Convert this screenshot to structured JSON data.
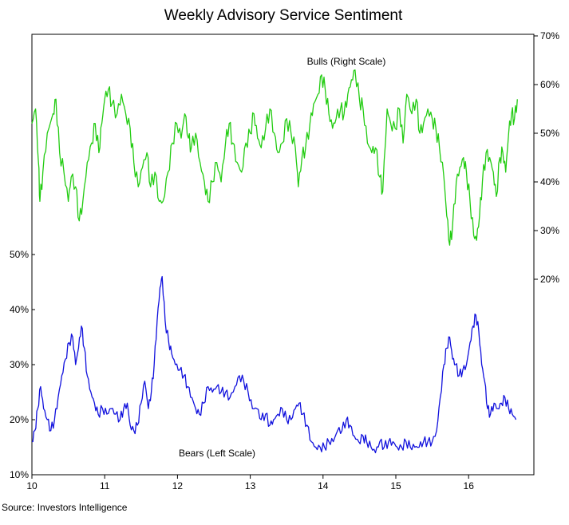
{
  "chart_data": {
    "type": "line",
    "title": "Weekly Advisory Service Sentiment",
    "source": "Source:  Investors  Intelligence",
    "x_ticks": [
      "10",
      "11",
      "12",
      "13",
      "14",
      "15",
      "16"
    ],
    "x_range": [
      2010.0,
      2016.95
    ],
    "left_axis": {
      "ticks": [
        "10%",
        "20%",
        "30%",
        "40%",
        "50%"
      ],
      "range": [
        10,
        50
      ]
    },
    "right_axis": {
      "ticks": [
        "20%",
        "30%",
        "40%",
        "50%",
        "60%",
        "70%"
      ],
      "range": [
        20,
        70
      ]
    },
    "legend": "none (series labelled inline)",
    "grid": false,
    "series": [
      {
        "name": "Bulls (Right Scale)",
        "axis": "right",
        "color": "#22cc11",
        "points": [
          [
            2010.0,
            52
          ],
          [
            2010.05,
            55
          ],
          [
            2010.09,
            44
          ],
          [
            2010.11,
            36
          ],
          [
            2010.15,
            42
          ],
          [
            2010.21,
            50
          ],
          [
            2010.29,
            54
          ],
          [
            2010.33,
            57
          ],
          [
            2010.38,
            46
          ],
          [
            2010.44,
            42
          ],
          [
            2010.5,
            36
          ],
          [
            2010.54,
            41
          ],
          [
            2010.6,
            39
          ],
          [
            2010.65,
            32
          ],
          [
            2010.7,
            36
          ],
          [
            2010.76,
            44
          ],
          [
            2010.82,
            48
          ],
          [
            2010.87,
            52
          ],
          [
            2010.92,
            46
          ],
          [
            2010.96,
            52
          ],
          [
            2011.0,
            57
          ],
          [
            2011.05,
            59
          ],
          [
            2011.1,
            56
          ],
          [
            2011.17,
            54
          ],
          [
            2011.23,
            58
          ],
          [
            2011.29,
            54
          ],
          [
            2011.35,
            51
          ],
          [
            2011.4,
            44
          ],
          [
            2011.46,
            39
          ],
          [
            2011.52,
            43
          ],
          [
            2011.58,
            46
          ],
          [
            2011.63,
            39
          ],
          [
            2011.69,
            42
          ],
          [
            2011.75,
            36
          ],
          [
            2011.8,
            36
          ],
          [
            2011.87,
            42
          ],
          [
            2011.93,
            48
          ],
          [
            2011.99,
            52
          ],
          [
            2012.05,
            49
          ],
          [
            2012.1,
            54
          ],
          [
            2012.15,
            49
          ],
          [
            2012.19,
            47
          ],
          [
            2012.25,
            50
          ],
          [
            2012.31,
            44
          ],
          [
            2012.37,
            40
          ],
          [
            2012.42,
            36
          ],
          [
            2012.48,
            40
          ],
          [
            2012.54,
            44
          ],
          [
            2012.6,
            40
          ],
          [
            2012.66,
            48
          ],
          [
            2012.71,
            52
          ],
          [
            2012.76,
            48
          ],
          [
            2012.82,
            44
          ],
          [
            2012.88,
            42
          ],
          [
            2012.94,
            48
          ],
          [
            2013.0,
            50
          ],
          [
            2013.05,
            54
          ],
          [
            2013.1,
            49
          ],
          [
            2013.15,
            47
          ],
          [
            2013.21,
            51
          ],
          [
            2013.27,
            55
          ],
          [
            2013.33,
            50
          ],
          [
            2013.38,
            46
          ],
          [
            2013.44,
            48
          ],
          [
            2013.5,
            53
          ],
          [
            2013.56,
            50
          ],
          [
            2013.62,
            47
          ],
          [
            2013.66,
            39
          ],
          [
            2013.71,
            45
          ],
          [
            2013.76,
            47
          ],
          [
            2013.82,
            52
          ],
          [
            2013.87,
            56
          ],
          [
            2013.93,
            58
          ],
          [
            2013.98,
            62
          ],
          [
            2014.03,
            59
          ],
          [
            2014.08,
            54
          ],
          [
            2014.13,
            51
          ],
          [
            2014.18,
            53
          ],
          [
            2014.24,
            55
          ],
          [
            2014.29,
            54
          ],
          [
            2014.34,
            58
          ],
          [
            2014.39,
            61
          ],
          [
            2014.44,
            63
          ],
          [
            2014.5,
            57
          ],
          [
            2014.55,
            55
          ],
          [
            2014.61,
            48
          ],
          [
            2014.67,
            46
          ],
          [
            2014.72,
            47
          ],
          [
            2014.78,
            41
          ],
          [
            2014.82,
            38
          ],
          [
            2014.88,
            55
          ],
          [
            2014.93,
            52
          ],
          [
            2014.99,
            51
          ],
          [
            2015.05,
            55
          ],
          [
            2015.1,
            48
          ],
          [
            2015.15,
            58
          ],
          [
            2015.22,
            54
          ],
          [
            2015.28,
            57
          ],
          [
            2015.33,
            50
          ],
          [
            2015.38,
            52
          ],
          [
            2015.44,
            55
          ],
          [
            2015.5,
            53
          ],
          [
            2015.55,
            51
          ],
          [
            2015.6,
            47
          ],
          [
            2015.66,
            41
          ],
          [
            2015.7,
            33
          ],
          [
            2015.74,
            27
          ],
          [
            2015.78,
            31
          ],
          [
            2015.83,
            40
          ],
          [
            2015.88,
            43
          ],
          [
            2015.93,
            45
          ],
          [
            2015.97,
            42
          ],
          [
            2016.02,
            36
          ],
          [
            2016.07,
            29
          ],
          [
            2016.11,
            28
          ],
          [
            2016.15,
            33
          ],
          [
            2016.19,
            40
          ],
          [
            2016.24,
            46
          ],
          [
            2016.29,
            45
          ],
          [
            2016.34,
            42
          ],
          [
            2016.38,
            37
          ],
          [
            2016.43,
            45
          ],
          [
            2016.47,
            46
          ],
          [
            2016.51,
            42
          ],
          [
            2016.55,
            50
          ],
          [
            2016.59,
            54
          ],
          [
            2016.63,
            53
          ],
          [
            2016.67,
            57
          ]
        ]
      },
      {
        "name": "Bears (Left Scale)",
        "axis": "left",
        "color": "#1111dd",
        "points": [
          [
            2010.0,
            16
          ],
          [
            2010.04,
            18
          ],
          [
            2010.08,
            22
          ],
          [
            2010.12,
            26
          ],
          [
            2010.16,
            22
          ],
          [
            2010.21,
            20
          ],
          [
            2010.26,
            18
          ],
          [
            2010.31,
            20
          ],
          [
            2010.36,
            24
          ],
          [
            2010.41,
            28
          ],
          [
            2010.46,
            31
          ],
          [
            2010.51,
            34
          ],
          [
            2010.56,
            35
          ],
          [
            2010.6,
            30
          ],
          [
            2010.64,
            33
          ],
          [
            2010.68,
            37
          ],
          [
            2010.72,
            33
          ],
          [
            2010.76,
            28
          ],
          [
            2010.81,
            25
          ],
          [
            2010.86,
            23
          ],
          [
            2010.91,
            21
          ],
          [
            2010.97,
            22
          ],
          [
            2011.03,
            21
          ],
          [
            2011.09,
            22
          ],
          [
            2011.15,
            21
          ],
          [
            2011.21,
            20
          ],
          [
            2011.26,
            22
          ],
          [
            2011.31,
            23
          ],
          [
            2011.35,
            19
          ],
          [
            2011.4,
            18
          ],
          [
            2011.45,
            19
          ],
          [
            2011.5,
            23
          ],
          [
            2011.55,
            27
          ],
          [
            2011.6,
            22
          ],
          [
            2011.64,
            25
          ],
          [
            2011.68,
            30
          ],
          [
            2011.72,
            38
          ],
          [
            2011.76,
            44
          ],
          [
            2011.79,
            46
          ],
          [
            2011.83,
            38
          ],
          [
            2011.88,
            34
          ],
          [
            2011.92,
            32
          ],
          [
            2011.97,
            30
          ],
          [
            2012.03,
            29
          ],
          [
            2012.09,
            28
          ],
          [
            2012.14,
            26
          ],
          [
            2012.2,
            24
          ],
          [
            2012.25,
            22
          ],
          [
            2012.3,
            21
          ],
          [
            2012.36,
            23
          ],
          [
            2012.42,
            26
          ],
          [
            2012.48,
            25
          ],
          [
            2012.54,
            26
          ],
          [
            2012.6,
            25
          ],
          [
            2012.66,
            25
          ],
          [
            2012.72,
            24
          ],
          [
            2012.79,
            26
          ],
          [
            2012.85,
            28
          ],
          [
            2012.91,
            27
          ],
          [
            2012.97,
            25
          ],
          [
            2013.03,
            22
          ],
          [
            2013.09,
            22
          ],
          [
            2013.15,
            20
          ],
          [
            2013.21,
            21
          ],
          [
            2013.27,
            19
          ],
          [
            2013.32,
            20
          ],
          [
            2013.38,
            21
          ],
          [
            2013.44,
            22
          ],
          [
            2013.5,
            20
          ],
          [
            2013.56,
            20
          ],
          [
            2013.62,
            22
          ],
          [
            2013.67,
            23
          ],
          [
            2013.72,
            21
          ],
          [
            2013.78,
            19
          ],
          [
            2013.84,
            16
          ],
          [
            2013.9,
            15
          ],
          [
            2013.96,
            15
          ],
          [
            2014.02,
            15
          ],
          [
            2014.08,
            16
          ],
          [
            2014.14,
            16
          ],
          [
            2014.2,
            18
          ],
          [
            2014.26,
            18
          ],
          [
            2014.32,
            20
          ],
          [
            2014.37,
            19
          ],
          [
            2014.43,
            17
          ],
          [
            2014.49,
            16
          ],
          [
            2014.55,
            17
          ],
          [
            2014.6,
            16
          ],
          [
            2014.66,
            15
          ],
          [
            2014.72,
            14
          ],
          [
            2014.78,
            16
          ],
          [
            2014.84,
            15
          ],
          [
            2014.9,
            16
          ],
          [
            2014.96,
            16
          ],
          [
            2015.02,
            15
          ],
          [
            2015.08,
            15
          ],
          [
            2015.14,
            16
          ],
          [
            2015.2,
            15
          ],
          [
            2015.26,
            15
          ],
          [
            2015.32,
            15
          ],
          [
            2015.38,
            16
          ],
          [
            2015.44,
            16
          ],
          [
            2015.5,
            16
          ],
          [
            2015.56,
            18
          ],
          [
            2015.61,
            24
          ],
          [
            2015.66,
            30
          ],
          [
            2015.7,
            33
          ],
          [
            2015.74,
            35
          ],
          [
            2015.78,
            31
          ],
          [
            2015.82,
            30
          ],
          [
            2015.87,
            28
          ],
          [
            2015.92,
            29
          ],
          [
            2015.97,
            30
          ],
          [
            2016.02,
            34
          ],
          [
            2016.06,
            37
          ],
          [
            2016.1,
            39
          ],
          [
            2016.14,
            36
          ],
          [
            2016.18,
            30
          ],
          [
            2016.22,
            27
          ],
          [
            2016.26,
            22
          ],
          [
            2016.3,
            21
          ],
          [
            2016.35,
            23
          ],
          [
            2016.4,
            22
          ],
          [
            2016.45,
            23
          ],
          [
            2016.5,
            24
          ],
          [
            2016.55,
            22
          ],
          [
            2016.6,
            21
          ],
          [
            2016.65,
            20
          ]
        ]
      }
    ]
  }
}
